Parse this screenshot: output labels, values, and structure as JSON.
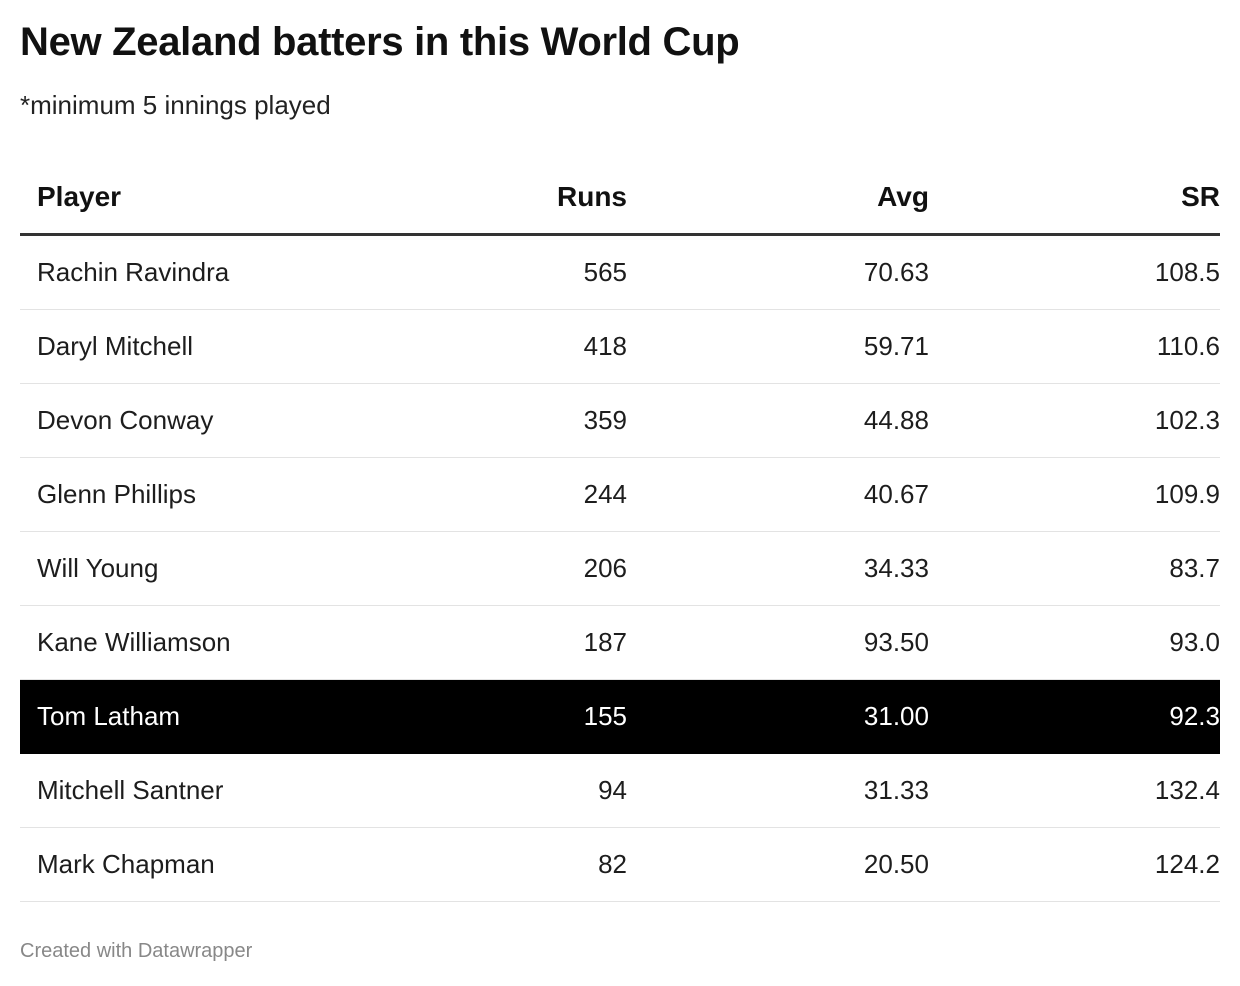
{
  "title": "New Zealand batters in this World Cup",
  "subtitle": "*minimum 5 innings played",
  "columns": [
    "Player",
    "Runs",
    "Avg",
    "SR"
  ],
  "rows": [
    [
      "Rachin Ravindra",
      "565",
      "70.63",
      "108.5"
    ],
    [
      "Daryl Mitchell",
      "418",
      "59.71",
      "110.6"
    ],
    [
      "Devon Conway",
      "359",
      "44.88",
      "102.3"
    ],
    [
      "Glenn Phillips",
      "244",
      "40.67",
      "109.9"
    ],
    [
      "Will Young",
      "206",
      "34.33",
      "83.7"
    ],
    [
      "Kane Williamson",
      "187",
      "93.50",
      "93.0"
    ],
    [
      "Tom Latham",
      "155",
      "31.00",
      "92.3"
    ],
    [
      "Mitchell Santner",
      "94",
      "31.33",
      "132.4"
    ],
    [
      "Mark Chapman",
      "82",
      "20.50",
      "124.2"
    ]
  ],
  "highlighted_row": "Tom Latham",
  "highlight_color": "#000000",
  "footer": "Created with Datawrapper"
}
